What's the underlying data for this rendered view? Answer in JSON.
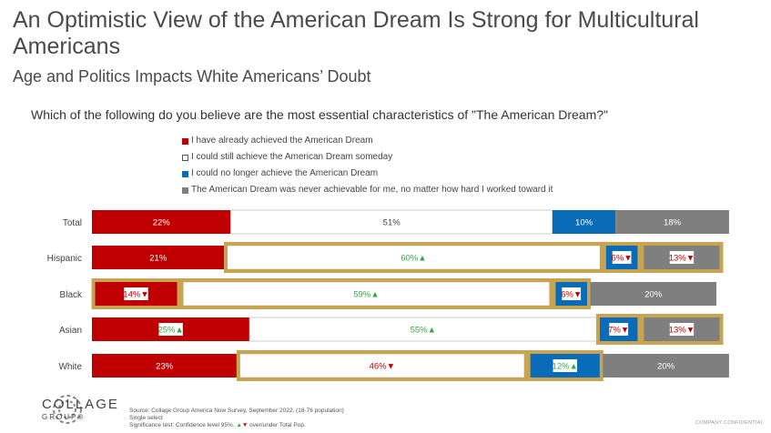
{
  "title": "An Optimistic View of the American Dream Is Strong for Multicultural Americans",
  "subtitle": "Age and Politics Impacts White Americans’ Doubt",
  "colors": {
    "red": "#c00000",
    "white": "#ffffff",
    "blue": "#0a6cb8",
    "gray": "#7f7f7f",
    "highlight": "#c8a450",
    "up": "#3ba54a",
    "down": "#c00000"
  },
  "chart_data": {
    "type": "bar",
    "orientation": "horizontal-stacked-100",
    "title": "Which of the following do you believe are the most essential characteristics of \"The American Dream?\"",
    "legend": [
      "I have already achieved the American Dream",
      "I could still achieve the American Dream someday",
      "I could no longer achieve the American Dream",
      "The American Dream was never achievable for me, no matter how hard I worked toward  it"
    ],
    "categories": [
      "Total",
      "Hispanic",
      "Black",
      "Asian",
      "White"
    ],
    "series": [
      {
        "name": "I have already achieved the American Dream",
        "color": "red",
        "values": [
          22,
          21,
          14,
          25,
          23
        ],
        "sig": [
          "",
          "",
          "down",
          "up",
          ""
        ]
      },
      {
        "name": "I could still achieve the American Dream someday",
        "color": "white",
        "values": [
          51,
          60,
          59,
          55,
          46
        ],
        "sig": [
          "",
          "up",
          "up",
          "up",
          "down"
        ]
      },
      {
        "name": "I could no longer achieve the American Dream",
        "color": "blue",
        "values": [
          10,
          6,
          6,
          7,
          12
        ],
        "sig": [
          "",
          "down",
          "down",
          "down",
          "up"
        ]
      },
      {
        "name": "The American Dream was never achievable for me, no matter how hard I worked toward  it",
        "color": "gray",
        "values": [
          18,
          13,
          20,
          13,
          20
        ],
        "sig": [
          "",
          "down",
          "",
          "down",
          ""
        ]
      }
    ],
    "highlighted_segments": [
      [
        1,
        1
      ],
      [
        1,
        2
      ],
      [
        1,
        3
      ],
      [
        2,
        0
      ],
      [
        2,
        1
      ],
      [
        2,
        2
      ],
      [
        3,
        2
      ],
      [
        3,
        3
      ],
      [
        4,
        1
      ],
      [
        4,
        2
      ]
    ]
  },
  "footer": {
    "logo_line1": "COLLAGE",
    "logo_line2": "GROUP®",
    "source": "Source: Collage Group America Now Survey, September 2022, (18-76 population)",
    "single_select": "Single select",
    "sig_test_prefix": "Significance test: Confidence level 95%.",
    "sig_test_suffix": "over/under Total Pop.",
    "confidential": "COMPANY CONFIDENTIAL"
  }
}
